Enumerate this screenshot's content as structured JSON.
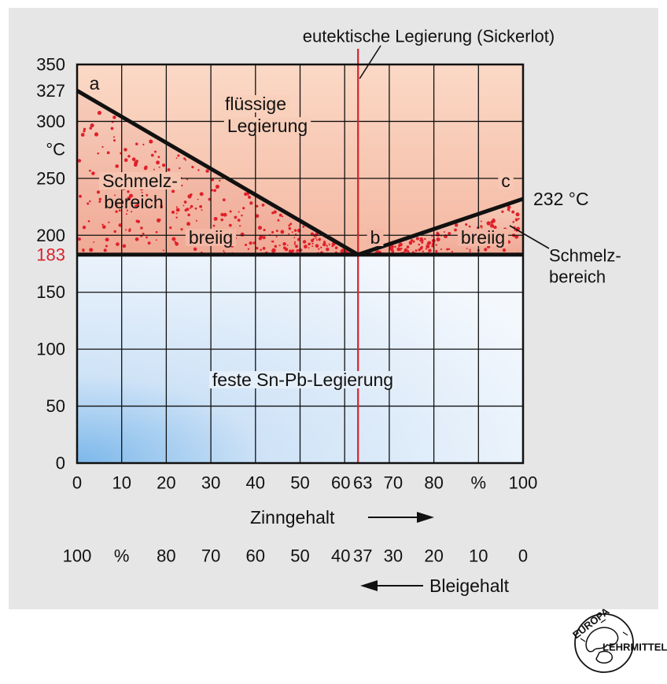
{
  "chart_data": {
    "type": "phase-diagram",
    "title": "",
    "top_annotation": "eutektische Legierung (Sickerlot)",
    "xlabel": "Zinngehalt",
    "x2label": "Bleigehalt",
    "ylabel_unit": "°C",
    "xlim": [
      0,
      100
    ],
    "ylim": [
      0,
      350
    ],
    "x_ticks": [
      "0",
      "10",
      "20",
      "30",
      "40",
      "50",
      "60",
      "63",
      "70",
      "80",
      "%",
      "100"
    ],
    "x2_ticks": [
      "100",
      "%",
      "80",
      "70",
      "60",
      "50",
      "40",
      "37",
      "30",
      "20",
      "10",
      "0"
    ],
    "y_ticks": [
      "0",
      "50",
      "100",
      "150",
      "200",
      "250",
      "300",
      "350"
    ],
    "y_special_ticks": [
      "327",
      "183"
    ],
    "liquidus": [
      {
        "label": "a",
        "x": 0,
        "y": 327
      },
      {
        "label": "b",
        "x": 63,
        "y": 183
      },
      {
        "label": "c",
        "x": 100,
        "y": 232
      }
    ],
    "solidus_temperature": 183,
    "eutectic_composition": 63,
    "regions": {
      "liquid": "flüssige Legierung",
      "liquid_line1": "flüssige",
      "liquid_line2": "Legierung",
      "mushy_left1": "Schmelz-",
      "mushy_left2": "bereich",
      "mushy_left_state": "breiig",
      "mushy_right_state": "breiig",
      "mushy_right1": "Schmelz-",
      "mushy_right2": "bereich",
      "solid": "feste Sn-Pb-Legierung"
    },
    "point_labels": {
      "a": "a",
      "b": "b",
      "c": "c"
    },
    "annotation_232": "232 °C",
    "colors": {
      "liquid_fill": "#f7cdb5",
      "solid_fill": "#d6e6f8",
      "solid_edge": "#7ab7e8",
      "eutectic_line": "#d8232a",
      "dots": "#e0202a",
      "special_tick": "#d8232a"
    }
  },
  "logo": {
    "name": "EUROPA LEHRMITTEL",
    "top": "EUROPA",
    "right": "LEHRMITTEL"
  }
}
